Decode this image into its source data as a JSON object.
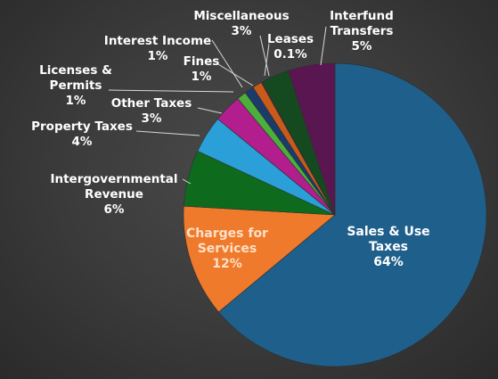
{
  "chart_data": {
    "type": "pie",
    "title": "",
    "slices": [
      {
        "label": "Sales & Use Taxes",
        "lines": [
          "Sales & Use",
          "Taxes"
        ],
        "value": 64,
        "text": "64%",
        "color": "#1f5f8b"
      },
      {
        "label": "Charges for Services",
        "lines": [
          "Charges for",
          "Services"
        ],
        "value": 12,
        "text": "12%",
        "color": "#ef7a2c"
      },
      {
        "label": "Intergovernmental Revenue",
        "lines": [
          "Intergovernmental",
          "Revenue"
        ],
        "value": 6,
        "text": "6%",
        "color": "#0e6b1e"
      },
      {
        "label": "Property Taxes",
        "lines": [
          "Property Taxes"
        ],
        "value": 4,
        "text": "4%",
        "color": "#2a9fd8"
      },
      {
        "label": "Other Taxes",
        "lines": [
          "Other Taxes"
        ],
        "value": 3,
        "text": "3%",
        "color": "#b21e8e"
      },
      {
        "label": "Licenses & Permits",
        "lines": [
          "Licenses &",
          "Permits"
        ],
        "value": 1,
        "text": "1%",
        "color": "#4caf3c"
      },
      {
        "label": "Interest Income",
        "lines": [
          "Interest Income"
        ],
        "value": 1,
        "text": "1%",
        "color": "#1b3b6b"
      },
      {
        "label": "Fines",
        "lines": [
          "Fines"
        ],
        "value": 1,
        "text": "1%",
        "color": "#c85a1c"
      },
      {
        "label": "Leases",
        "lines": [
          "Leases"
        ],
        "value": 0.1,
        "text": "0.1%",
        "color": "#8b2a3a"
      },
      {
        "label": "Miscellaneous",
        "lines": [
          "Miscellaneous"
        ],
        "value": 3,
        "text": "3%",
        "color": "#154a20"
      },
      {
        "label": "Interfund Transfers",
        "lines": [
          "Interfund",
          "Transfers"
        ],
        "value": 5,
        "text": "5%",
        "color": "#5a1650"
      }
    ]
  }
}
